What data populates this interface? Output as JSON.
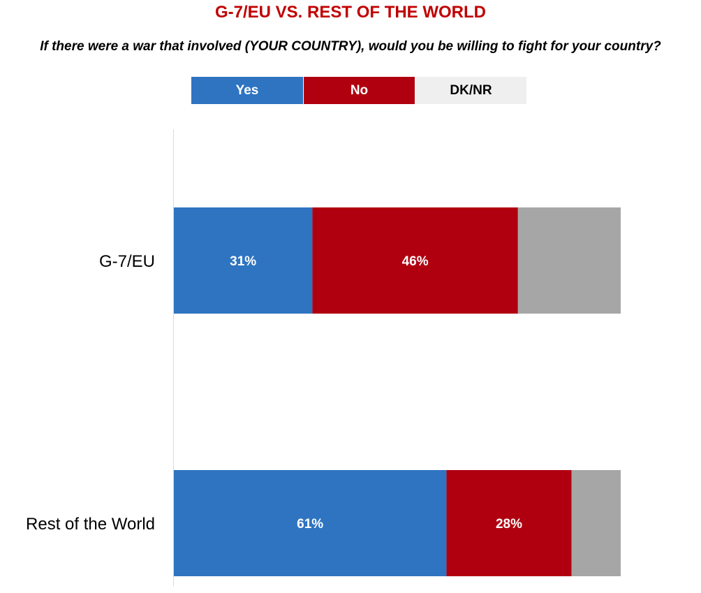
{
  "title": "G-7/EU VS. REST OF THE WORLD",
  "subtitle": "If there were a war that involved (YOUR COUNTRY), would you be willing to fight for your country?",
  "legend": [
    {
      "label": "Yes",
      "color": "#2e74c1",
      "text_color": "#ffffff"
    },
    {
      "label": "No",
      "color": "#b00010",
      "text_color": "#ffffff"
    },
    {
      "label": "DK/NR",
      "color": "#efefef",
      "text_color": "#000000"
    }
  ],
  "chart_data": {
    "type": "bar",
    "orientation": "horizontal",
    "stacked": true,
    "categories": [
      "G-7/EU",
      "Rest of the World"
    ],
    "series": [
      {
        "name": "Yes",
        "values": [
          31,
          61
        ],
        "labels": [
          "31%",
          "61%"
        ],
        "color": "#2e74c1"
      },
      {
        "name": "No",
        "values": [
          46,
          28
        ],
        "labels": [
          "46%",
          "28%"
        ],
        "color": "#b00010"
      },
      {
        "name": "DK/NR",
        "values": [
          23,
          11
        ],
        "labels": [
          "",
          ""
        ],
        "color": "#a6a6a6"
      }
    ],
    "xlim": [
      0,
      100
    ],
    "grid": false,
    "legend_position": "top"
  }
}
